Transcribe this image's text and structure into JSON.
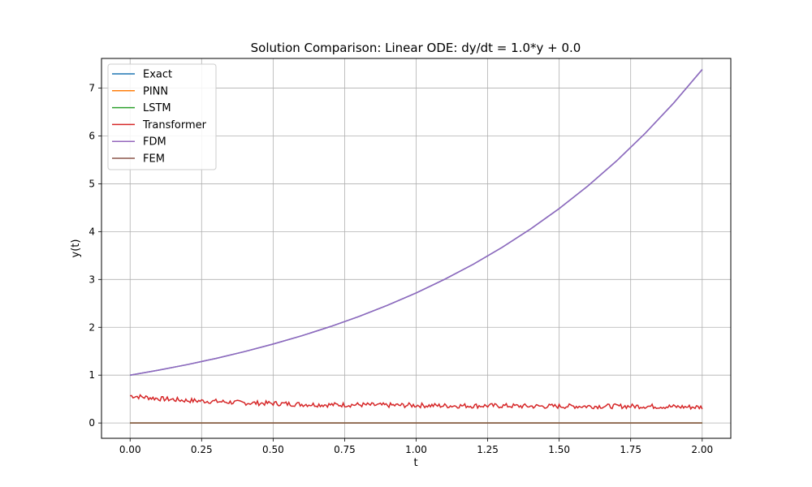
{
  "chart_data": {
    "type": "line",
    "title": "Solution Comparison: Linear ODE: dy/dt = 1.0*y + 0.0",
    "xlabel": "t",
    "ylabel": "y(t)",
    "xlim": [
      -0.1,
      2.1
    ],
    "ylim": [
      -0.32,
      7.62
    ],
    "xticks": [
      0.0,
      0.25,
      0.5,
      0.75,
      1.0,
      1.25,
      1.5,
      1.75,
      2.0
    ],
    "xtick_labels": [
      "0.00",
      "0.25",
      "0.50",
      "0.75",
      "1.00",
      "1.25",
      "1.50",
      "1.75",
      "2.00"
    ],
    "yticks": [
      0,
      1,
      2,
      3,
      4,
      5,
      6,
      7
    ],
    "ytick_labels": [
      "0",
      "1",
      "2",
      "3",
      "4",
      "5",
      "6",
      "7"
    ],
    "grid": true,
    "legend_position": "top-left",
    "x": [
      0.0,
      0.1,
      0.2,
      0.3,
      0.4,
      0.5,
      0.6,
      0.7,
      0.8,
      0.9,
      1.0,
      1.1,
      1.2,
      1.3,
      1.4,
      1.5,
      1.6,
      1.7,
      1.8,
      1.9,
      2.0
    ],
    "series": [
      {
        "name": "Exact",
        "color": "#1f77b4",
        "values": [
          1.0,
          1.105,
          1.221,
          1.35,
          1.492,
          1.649,
          1.822,
          2.014,
          2.226,
          2.46,
          2.718,
          3.004,
          3.32,
          3.669,
          4.055,
          4.482,
          4.953,
          5.474,
          6.05,
          6.686,
          7.389
        ]
      },
      {
        "name": "PINN",
        "color": "#ff7f0e",
        "values": [
          0.0,
          0.0,
          0.0,
          0.0,
          0.0,
          0.0,
          0.0,
          0.0,
          0.0,
          0.0,
          0.0,
          0.0,
          0.0,
          0.0,
          0.0,
          0.0,
          0.0,
          0.0,
          0.0,
          0.0,
          0.0
        ]
      },
      {
        "name": "LSTM",
        "color": "#2ca02c",
        "values": [
          0.0,
          0.0,
          0.0,
          0.0,
          0.0,
          0.0,
          0.0,
          0.0,
          0.0,
          0.0,
          0.0,
          0.0,
          0.0,
          0.0,
          0.0,
          0.0,
          0.0,
          0.0,
          0.0,
          0.0,
          0.0
        ]
      },
      {
        "name": "Transformer",
        "color": "#d62728",
        "noisy": true,
        "values": [
          0.57,
          0.51,
          0.47,
          0.45,
          0.42,
          0.41,
          0.39,
          0.38,
          0.38,
          0.37,
          0.37,
          0.36,
          0.36,
          0.36,
          0.35,
          0.35,
          0.35,
          0.35,
          0.35,
          0.34,
          0.33
        ]
      },
      {
        "name": "FDM",
        "color": "#9467bd",
        "values": [
          1.0,
          1.105,
          1.221,
          1.35,
          1.492,
          1.649,
          1.822,
          2.014,
          2.226,
          2.46,
          2.718,
          3.004,
          3.32,
          3.669,
          4.055,
          4.482,
          4.953,
          5.474,
          6.05,
          6.686,
          7.389
        ]
      },
      {
        "name": "FEM",
        "color": "#8c564b",
        "values": [
          0.0,
          0.0,
          0.0,
          0.0,
          0.0,
          0.0,
          0.0,
          0.0,
          0.0,
          0.0,
          0.0,
          0.0,
          0.0,
          0.0,
          0.0,
          0.0,
          0.0,
          0.0,
          0.0,
          0.0,
          0.0
        ]
      }
    ]
  }
}
